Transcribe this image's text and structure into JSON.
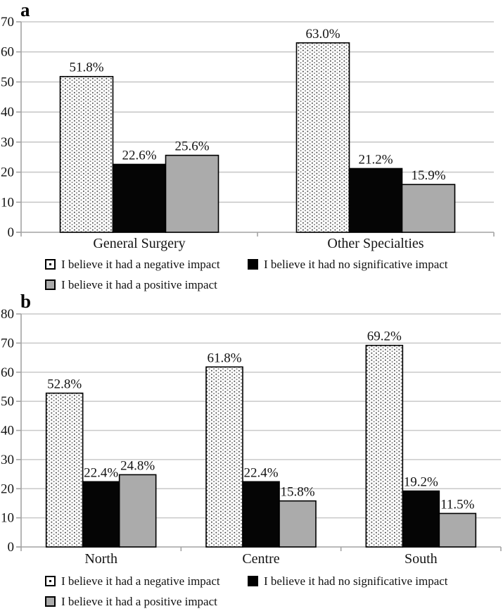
{
  "panels": {
    "a": {
      "label": "a"
    },
    "b": {
      "label": "b"
    }
  },
  "colors": {
    "background": "#ffffff",
    "grid": "#c9c9c9",
    "axis": "#a3a3a3",
    "text": "#141414",
    "bar_border": "#000000",
    "dotted_fill": "#ffffff",
    "dot_dark": "#3d3d3d",
    "dot_light": "#7a7a7a",
    "black_fill": "#050505",
    "gray_fill": "#ababab"
  },
  "legend": {
    "items": [
      {
        "label": "I believe it had a negative impact",
        "style": "dotted"
      },
      {
        "label": "I believe it had no significative impact",
        "style": "black"
      },
      {
        "label": "I believe it had a positive impact",
        "style": "gray"
      }
    ]
  },
  "chart_data": [
    {
      "id": "a",
      "type": "bar",
      "title": "",
      "xlabel": "",
      "ylabel": "",
      "categories": [
        "General Surgery",
        "Other Specialties"
      ],
      "series": [
        {
          "name": "I believe it had a negative impact",
          "style": "dotted",
          "values": [
            51.8,
            63.0
          ]
        },
        {
          "name": "I believe it had no significative impact",
          "style": "black",
          "values": [
            22.6,
            21.2
          ]
        },
        {
          "name": "I believe it had a positive impact",
          "style": "gray",
          "values": [
            25.6,
            15.9
          ]
        }
      ],
      "value_labels": [
        [
          "51.8%",
          "63.0%"
        ],
        [
          "22.6%",
          "21.2%"
        ],
        [
          "25.6%",
          "15.9%"
        ]
      ],
      "ylim": [
        0,
        70
      ],
      "ytick_step": 10,
      "yticks": [
        0,
        10,
        20,
        30,
        40,
        50,
        60,
        70
      ],
      "grid": true,
      "legend_position": "below"
    },
    {
      "id": "b",
      "type": "bar",
      "title": "",
      "xlabel": "",
      "ylabel": "",
      "categories": [
        "North",
        "Centre",
        "South"
      ],
      "series": [
        {
          "name": "I believe it had a negative impact",
          "style": "dotted",
          "values": [
            52.8,
            61.8,
            69.2
          ]
        },
        {
          "name": "I believe it had no significative impact",
          "style": "black",
          "values": [
            22.4,
            22.4,
            19.2
          ]
        },
        {
          "name": "I believe it had a positive impact",
          "style": "gray",
          "values": [
            24.8,
            15.8,
            11.5
          ]
        }
      ],
      "value_labels": [
        [
          "52.8%",
          "61.8%",
          "69.2%"
        ],
        [
          "22.4%",
          "22.4%",
          "19.2%"
        ],
        [
          "24.8%",
          "15.8%",
          "11.5%"
        ]
      ],
      "ylim": [
        0,
        80
      ],
      "ytick_step": 10,
      "yticks": [
        0,
        10,
        20,
        30,
        40,
        50,
        60,
        70,
        80
      ],
      "grid": true,
      "legend_position": "below"
    }
  ]
}
